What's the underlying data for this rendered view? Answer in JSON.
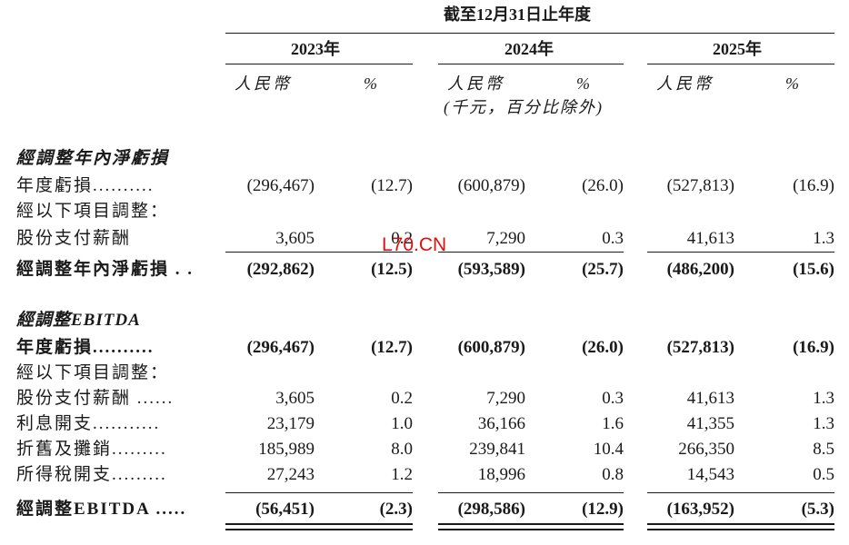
{
  "header": {
    "period_title": "截至12月31日止年度",
    "years": [
      "2023年",
      "2024年",
      "2025年"
    ],
    "currency_label": "人民幣",
    "percent_label": "%",
    "unit_note": "(千元，百分比除外)"
  },
  "section1": {
    "title": "經調整年內淨虧損",
    "rows": [
      {
        "label": "年度虧損..........",
        "values": [
          "(296,467)",
          "(12.7)",
          "(600,879)",
          "(26.0)",
          "(527,813)",
          "(16.9)"
        ]
      },
      {
        "label": "經以下項目調整：",
        "values": []
      },
      {
        "label": "股份支付薪酬",
        "values": [
          "3,605",
          "0.2",
          "7,290",
          "0.3",
          "41,613",
          "1.3"
        ]
      }
    ],
    "total": {
      "label": "經調整年內淨虧損 . .",
      "values": [
        "(292,862)",
        "(12.5)",
        "(593,589)",
        "(25.7)",
        "(486,200)",
        "(15.6)"
      ]
    }
  },
  "section2": {
    "title": "經調整EBITDA",
    "rows": [
      {
        "label": "年度虧損..........",
        "values": [
          "(296,467)",
          "(12.7)",
          "(600,879)",
          "(26.0)",
          "(527,813)",
          "(16.9)"
        ]
      },
      {
        "label": "經以下項目調整：",
        "values": []
      },
      {
        "label": "股份支付薪酬 ......",
        "values": [
          "3,605",
          "0.2",
          "7,290",
          "0.3",
          "41,613",
          "1.3"
        ]
      },
      {
        "label": "利息開支...........",
        "values": [
          "23,179",
          "1.0",
          "36,166",
          "1.6",
          "41,355",
          "1.3"
        ]
      },
      {
        "label": "折舊及攤銷.........",
        "values": [
          "185,989",
          "8.0",
          "239,841",
          "10.4",
          "266,350",
          "8.5"
        ]
      },
      {
        "label": "所得稅開支.........",
        "values": [
          "27,243",
          "1.2",
          "18,996",
          "0.8",
          "14,543",
          "0.5"
        ]
      }
    ],
    "total": {
      "label": "經調整EBITDA .....",
      "values": [
        "(56,451)",
        "(2.3)",
        "(298,586)",
        "(12.9)",
        "(163,952)",
        "(5.3)"
      ]
    }
  },
  "watermark": "L70.CN",
  "colors": {
    "text": "#1a1a1a",
    "watermark": "#e01010"
  }
}
